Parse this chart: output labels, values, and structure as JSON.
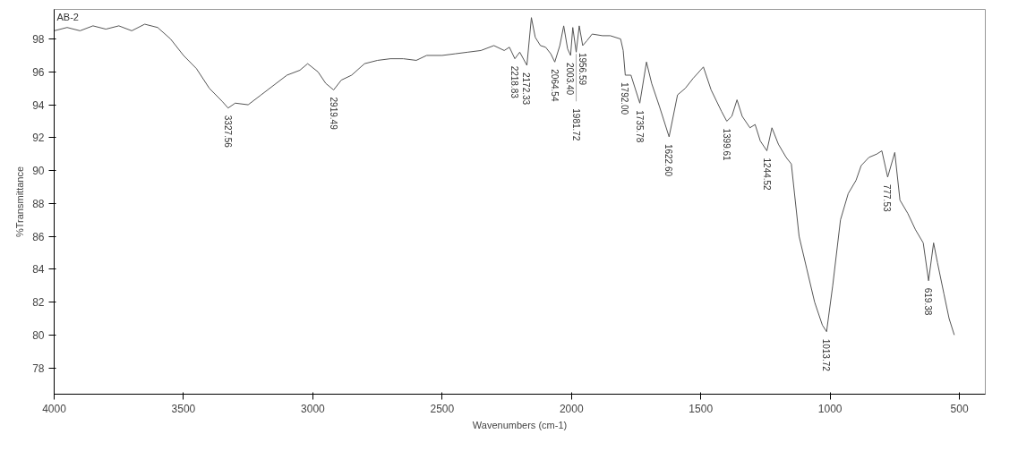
{
  "chart_data": {
    "type": "line",
    "title": "AB-2",
    "xlabel": "Wavenumbers (cm-1)",
    "ylabel": "%Transmittance",
    "xlim": [
      4000,
      400
    ],
    "ylim": [
      76.4,
      99.8
    ],
    "xticks": [
      4000,
      3500,
      3000,
      2500,
      2000,
      1500,
      1000,
      500
    ],
    "yticks": [
      78,
      80,
      82,
      84,
      86,
      88,
      90,
      92,
      94,
      96,
      98
    ],
    "grid": false,
    "marker": "none",
    "line_style": "solid",
    "series": [
      {
        "color": "#555555",
        "x": [
          4000,
          3950,
          3900,
          3850,
          3800,
          3750,
          3700,
          3650,
          3600,
          3550,
          3500,
          3450,
          3400,
          3350,
          3327.56,
          3300,
          3250,
          3200,
          3150,
          3100,
          3050,
          3020,
          2980,
          2950,
          2919.49,
          2890,
          2850,
          2800,
          2750,
          2700,
          2650,
          2600,
          2560,
          2500,
          2450,
          2400,
          2350,
          2300,
          2260,
          2240,
          2218.83,
          2200,
          2172.33,
          2155,
          2140,
          2120,
          2100,
          2080,
          2064.54,
          2045,
          2030,
          2015,
          2003.4,
          1995,
          1981.72,
          1970,
          1956.59,
          1940,
          1920,
          1880,
          1850,
          1810,
          1800,
          1792,
          1770,
          1735.78,
          1710,
          1690,
          1660,
          1622.6,
          1590,
          1560,
          1530,
          1490,
          1460,
          1420,
          1399.61,
          1380,
          1360,
          1340,
          1310,
          1290,
          1270,
          1244.52,
          1225,
          1200,
          1170,
          1150,
          1120,
          1090,
          1060,
          1030,
          1013.72,
          990,
          960,
          930,
          900,
          880,
          850,
          820,
          800,
          777.53,
          750,
          730,
          700,
          670,
          640,
          619.38,
          600,
          585,
          560,
          540,
          520
        ],
        "values": [
          98.5,
          98.7,
          98.5,
          98.8,
          98.6,
          98.8,
          98.5,
          98.9,
          98.7,
          98.0,
          97.0,
          96.2,
          95.0,
          94.2,
          93.8,
          94.1,
          94.0,
          94.6,
          95.2,
          95.8,
          96.1,
          96.5,
          96.0,
          95.3,
          94.9,
          95.5,
          95.8,
          96.5,
          96.7,
          96.8,
          96.8,
          96.7,
          97.0,
          97.0,
          97.1,
          97.2,
          97.3,
          97.6,
          97.3,
          97.5,
          96.8,
          97.2,
          96.4,
          99.3,
          98.1,
          97.6,
          97.5,
          97.1,
          96.6,
          97.6,
          98.8,
          97.4,
          97.0,
          98.7,
          97.2,
          98.8,
          97.6,
          97.9,
          98.3,
          98.2,
          98.2,
          98.0,
          97.3,
          95.8,
          95.8,
          94.1,
          96.6,
          95.3,
          93.9,
          92.05,
          94.6,
          95.0,
          95.6,
          96.3,
          94.9,
          93.6,
          93.0,
          93.3,
          94.3,
          93.3,
          92.6,
          92.8,
          91.8,
          91.2,
          92.6,
          91.6,
          90.8,
          90.4,
          86.0,
          84.0,
          82.0,
          80.6,
          80.2,
          83.0,
          87.0,
          88.6,
          89.4,
          90.3,
          90.8,
          91.0,
          91.2,
          89.6,
          91.1,
          88.2,
          87.4,
          86.4,
          85.6,
          83.3,
          85.6,
          84.4,
          82.5,
          81.0,
          80.0
        ]
      }
    ],
    "annotations": [
      {
        "text": "3327.56",
        "x": 3327.56,
        "y": 93.8
      },
      {
        "text": "2919.49",
        "x": 2919.49,
        "y": 94.9
      },
      {
        "text": "2218.83",
        "x": 2218.83,
        "y": 96.8
      },
      {
        "text": "2172.33",
        "x": 2172.33,
        "y": 96.4
      },
      {
        "text": "2064.54",
        "x": 2064.54,
        "y": 96.6
      },
      {
        "text": "2003.40",
        "x": 2003.4,
        "y": 97.0
      },
      {
        "text": "1981.72",
        "x": 1981.72,
        "y": 97.2
      },
      {
        "text": "1956.59",
        "x": 1956.59,
        "y": 97.6
      },
      {
        "text": "1792.00",
        "x": 1792,
        "y": 95.8
      },
      {
        "text": "1735.78",
        "x": 1735.78,
        "y": 94.1
      },
      {
        "text": "1622.60",
        "x": 1622.6,
        "y": 92.05
      },
      {
        "text": "1399.61",
        "x": 1399.61,
        "y": 93.0
      },
      {
        "text": "1244.52",
        "x": 1244.52,
        "y": 91.2
      },
      {
        "text": "1013.72",
        "x": 1013.72,
        "y": 80.2
      },
      {
        "text": "777.53",
        "x": 777.53,
        "y": 89.6
      },
      {
        "text": "619.38",
        "x": 619.38,
        "y": 83.3
      }
    ]
  }
}
